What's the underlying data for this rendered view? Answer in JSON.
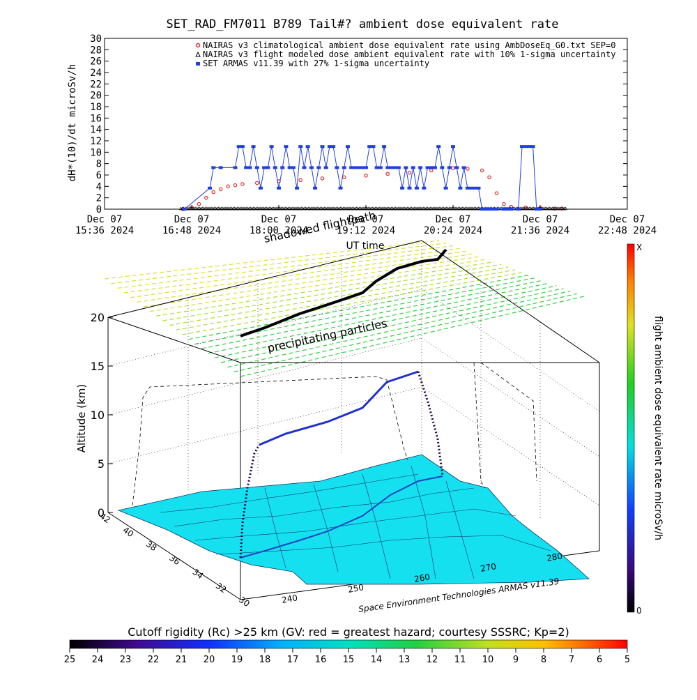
{
  "title": "SET_RAD_FM7011  B789 Tail#? ambient dose equivalent rate",
  "chart_data": [
    {
      "type": "line",
      "ylabel": "dH*(10)/dt microSv/h",
      "xlabel": "UT time",
      "ylim": [
        0,
        30
      ],
      "yticks": [
        0,
        2,
        4,
        6,
        8,
        10,
        12,
        14,
        16,
        18,
        20,
        22,
        24,
        26,
        28,
        30
      ],
      "xlim_hours": [
        15.6,
        22.8
      ],
      "xticks": [
        {
          "line1": "Dec 07",
          "line2": "15:36 2024",
          "t": 15.6
        },
        {
          "line1": "Dec 07",
          "line2": "16:48 2024",
          "t": 16.8
        },
        {
          "line1": "Dec 07",
          "line2": "18:00 2024",
          "t": 18.0
        },
        {
          "line1": "Dec 07",
          "line2": "19:12 2024",
          "t": 19.2
        },
        {
          "line1": "Dec 07",
          "line2": "20:24 2024",
          "t": 20.4
        },
        {
          "line1": "Dec 07",
          "line2": "21:36 2024",
          "t": 21.6
        },
        {
          "line1": "Dec 07",
          "line2": "22:48 2024",
          "t": 22.8
        }
      ],
      "legend_position": "top-right",
      "series": [
        {
          "name": "NAIRAS v3 climatological ambient dose equivalent rate using AmbDoseEq_G0.txt SEP=0",
          "marker": "circle",
          "color": "#e03030",
          "x": [
            16.68,
            16.8,
            16.9,
            17.0,
            17.1,
            17.2,
            17.3,
            17.4,
            17.5,
            17.7,
            18.0,
            18.3,
            18.6,
            18.9,
            19.2,
            19.5,
            19.8,
            20.1,
            20.4,
            20.6,
            20.8,
            20.9,
            21.0,
            21.1,
            21.2,
            21.4,
            21.6,
            21.8,
            21.9
          ],
          "y": [
            0,
            0.3,
            0.9,
            2.0,
            3.0,
            3.5,
            4.0,
            4.2,
            4.4,
            4.6,
            4.9,
            5.1,
            5.4,
            5.6,
            5.9,
            6.2,
            6.4,
            6.8,
            7.2,
            7.1,
            6.8,
            5.6,
            2.8,
            0.9,
            0.4,
            0.3,
            0.2,
            0.1,
            0.1
          ]
        },
        {
          "name": "NAIRAS v3 flight modeled dose ambient equivalent rate with 10% 1-sigma uncertainty",
          "marker": "triangle",
          "color": "#000000",
          "x": [
            16.65,
            21.95
          ],
          "y": [
            0,
            0
          ]
        },
        {
          "name": "SET ARMAS v11.39 with 27% 1-sigma uncertainty",
          "marker": "square",
          "color": "#1f3fe0",
          "x": [
            16.7,
            17.05,
            17.1,
            17.2,
            17.4,
            17.45,
            17.5,
            17.55,
            17.6,
            17.65,
            17.7,
            17.75,
            17.8,
            17.85,
            17.9,
            17.95,
            18.0,
            18.05,
            18.1,
            18.15,
            18.2,
            18.25,
            18.3,
            18.35,
            18.4,
            18.45,
            18.5,
            18.55,
            18.6,
            18.65,
            18.7,
            18.75,
            18.8,
            18.85,
            18.9,
            18.95,
            19.0,
            19.05,
            19.1,
            19.15,
            19.2,
            19.25,
            19.3,
            19.35,
            19.4,
            19.45,
            19.5,
            19.55,
            19.6,
            19.65,
            19.7,
            19.75,
            19.8,
            19.85,
            19.9,
            19.95,
            20.0,
            20.05,
            20.1,
            20.15,
            20.2,
            20.25,
            20.3,
            20.35,
            20.4,
            20.45,
            20.5,
            20.55,
            20.6,
            20.65,
            20.7,
            20.75,
            20.8,
            20.85,
            20.9,
            20.95,
            21.0,
            21.1,
            21.15,
            21.2,
            21.3,
            21.35,
            21.4,
            21.45,
            21.5,
            21.55,
            21.6
          ],
          "y": [
            0,
            3.7,
            7.3,
            7.3,
            7.3,
            11,
            11,
            7.3,
            7.3,
            11,
            7.3,
            3.7,
            7.3,
            7.3,
            11,
            7.3,
            3.7,
            7.3,
            11,
            7.3,
            7.3,
            3.7,
            11,
            7.3,
            11,
            7.3,
            3.7,
            7.3,
            11,
            7.3,
            11,
            11,
            7.3,
            3.7,
            7.3,
            11,
            7.3,
            7.3,
            7.3,
            7.3,
            7.3,
            11,
            11,
            7.3,
            7.3,
            11,
            7.3,
            7.3,
            7.3,
            7.3,
            3.7,
            7.3,
            3.7,
            7.3,
            3.7,
            7.3,
            3.7,
            7.3,
            7.3,
            7.3,
            11,
            7.3,
            3.7,
            7.3,
            11,
            7.3,
            3.7,
            7.3,
            3.7,
            3.7,
            3.7,
            3.7,
            0,
            0,
            0,
            0,
            0,
            0,
            0,
            0,
            0,
            11,
            11,
            11,
            11,
            0,
            0
          ]
        }
      ]
    },
    {
      "type": "scatter",
      "ylabel": "Altitude (km)",
      "zticks": [
        0,
        5,
        10,
        15,
        20
      ],
      "lat_ticks": [
        30,
        32,
        34,
        36,
        38,
        40,
        42
      ],
      "lon_ticks": [
        240,
        250,
        260,
        270,
        280
      ],
      "colorbar": {
        "label": "flight ambient dose equivalent rate microSv/h",
        "top_label": "X",
        "bottom_label": "0"
      },
      "annotations": [
        "shadowed flightpath",
        "precipitating particles"
      ],
      "credit": "Space Environment Technologies ARMAS v11.39"
    }
  ],
  "bottom_colorbar": {
    "title": "Cutoff rigidity (Rc) >25 km (GV: red = greatest hazard; courtesy SSSRC; Kp=2)",
    "ticks": [
      "25",
      "24",
      "23",
      "22",
      "21",
      "20",
      "19",
      "18",
      "17",
      "16",
      "15",
      "14",
      "13",
      "12",
      "11",
      "10",
      "9",
      "8",
      "7",
      "6",
      "5"
    ]
  }
}
